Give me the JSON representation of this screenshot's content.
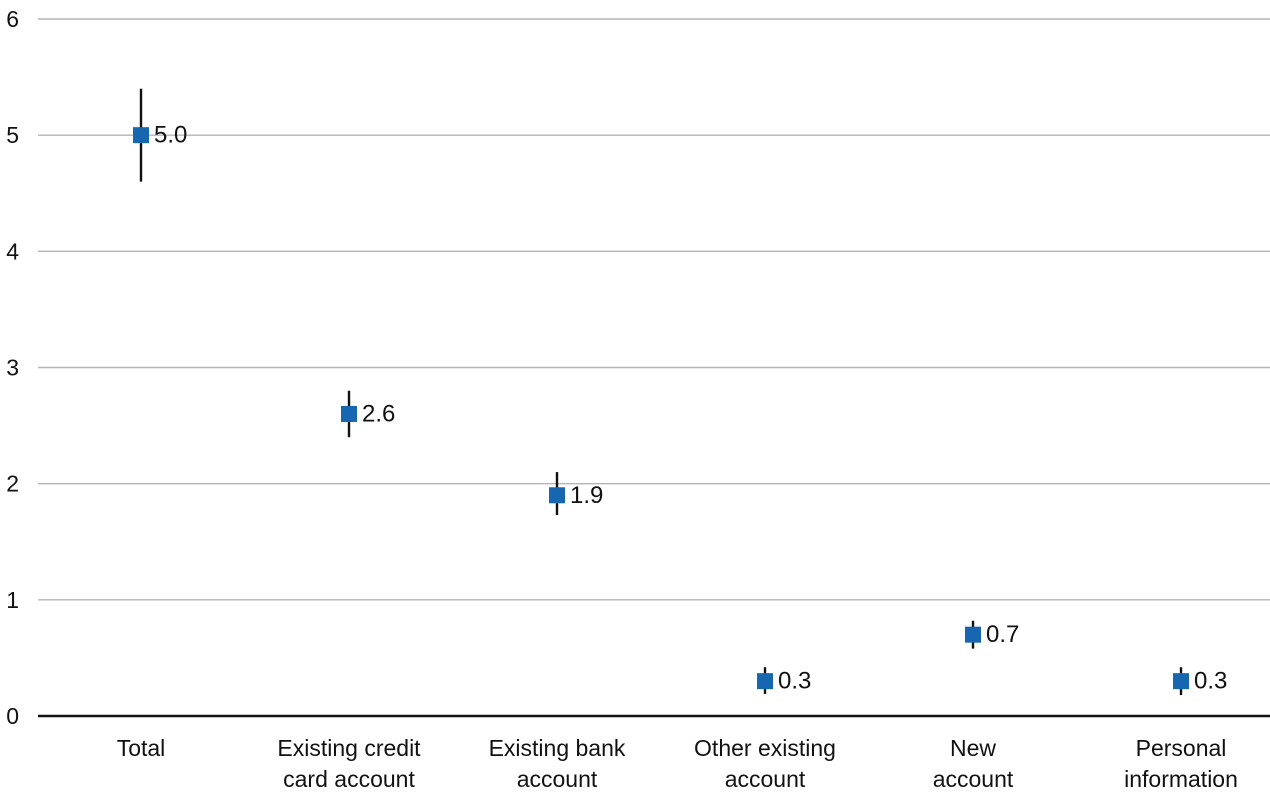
{
  "chart_data": {
    "type": "scatter",
    "title": "",
    "xlabel": "",
    "ylabel": "",
    "ylim": [
      0,
      6
    ],
    "yticks": [
      0,
      1,
      2,
      3,
      4,
      5,
      6
    ],
    "grid": true,
    "legend": "none",
    "marker": "square",
    "error_bars": true,
    "categories": [
      [
        "Total"
      ],
      [
        "Existing credit",
        "card account"
      ],
      [
        "Existing bank",
        "account"
      ],
      [
        "Other existing",
        "account"
      ],
      [
        "New",
        "account"
      ],
      [
        "Personal",
        "information"
      ]
    ],
    "values": [
      5.0,
      2.6,
      1.9,
      0.3,
      0.7,
      0.3
    ],
    "value_labels": [
      "5.0",
      "2.6",
      "1.9",
      "0.3",
      "0.7",
      "0.3"
    ],
    "error_low": [
      4.6,
      2.4,
      1.73,
      0.19,
      0.58,
      0.18
    ],
    "error_high": [
      5.4,
      2.8,
      2.1,
      0.42,
      0.82,
      0.42
    ]
  },
  "colors": {
    "marker": "#1666b0",
    "error_bar": "#111111",
    "grid": "#b5b5b5",
    "axis": "#111111"
  }
}
